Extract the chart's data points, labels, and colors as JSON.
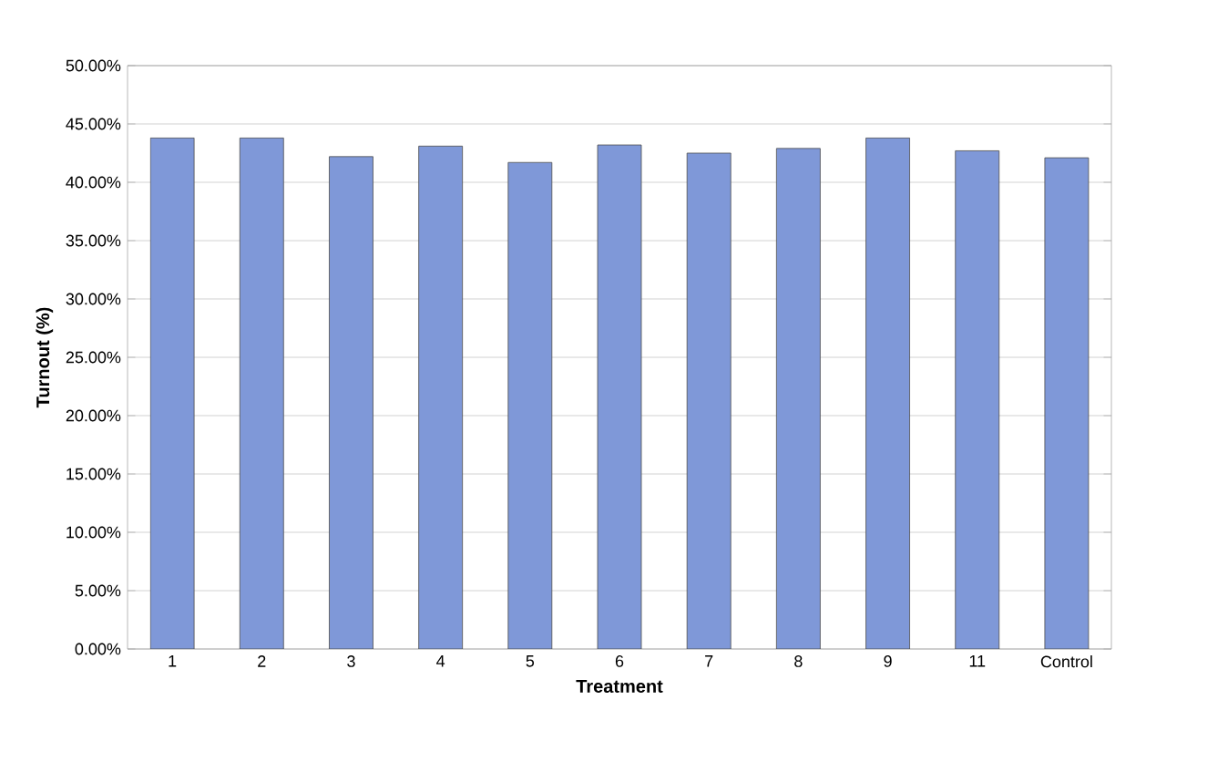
{
  "chart_data": {
    "type": "bar",
    "xlabel": "Treatment",
    "ylabel": "Turnout (%)",
    "categories": [
      "1",
      "2",
      "3",
      "4",
      "5",
      "6",
      "7",
      "8",
      "9",
      "11",
      "Control"
    ],
    "values": [
      43.8,
      43.8,
      42.2,
      43.1,
      41.7,
      43.2,
      42.5,
      42.9,
      43.8,
      42.7,
      42.1
    ],
    "color": "#7f98d8",
    "ylim": [
      0,
      50
    ],
    "yticks": [
      {
        "value": 0,
        "label": "0.00%"
      },
      {
        "value": 5,
        "label": "5.00%"
      },
      {
        "value": 10,
        "label": "10.00%"
      },
      {
        "value": 15,
        "label": "15.00%"
      },
      {
        "value": 20,
        "label": "20.00%"
      },
      {
        "value": 25,
        "label": "25.00%"
      },
      {
        "value": 30,
        "label": "30.00%"
      },
      {
        "value": 35,
        "label": "35.00%"
      },
      {
        "value": 40,
        "label": "40.00%"
      },
      {
        "value": 45,
        "label": "45.00%"
      },
      {
        "value": 50,
        "label": "50.00%"
      }
    ],
    "grid": "y"
  }
}
